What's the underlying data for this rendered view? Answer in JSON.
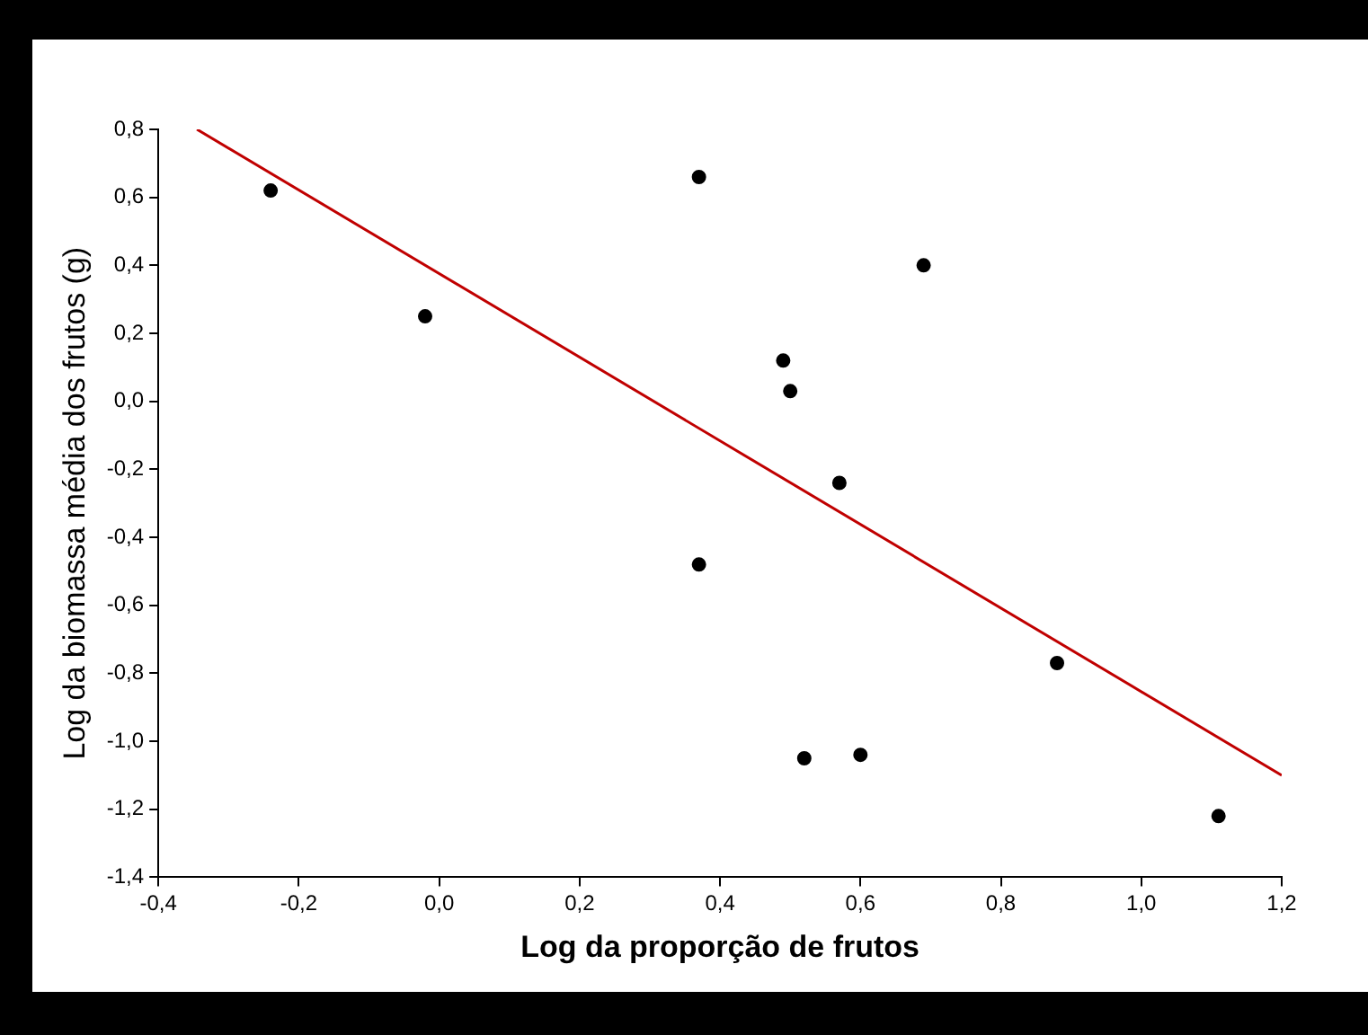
{
  "chart_data": {
    "type": "scatter",
    "xlabel": "Log da proporção de frutos",
    "ylabel": "Log da biomassa média dos frutos (g)",
    "series": [
      {
        "type": "scatter",
        "color": "#000000",
        "x": [
          -0.24,
          -0.02,
          0.37,
          0.37,
          0.49,
          0.5,
          0.52,
          0.57,
          0.6,
          0.69,
          0.88,
          1.11
        ],
        "values": [
          0.62,
          0.25,
          0.66,
          -0.48,
          0.12,
          0.03,
          -1.05,
          -0.24,
          -1.04,
          0.4,
          -0.77,
          -1.22
        ],
        "marker": "circle"
      },
      {
        "type": "line",
        "color": "#c00000",
        "x": [
          -0.345,
          1.2
        ],
        "values": [
          0.8,
          -1.1
        ],
        "marker": "none"
      }
    ],
    "xlim": [
      -0.4,
      1.2
    ],
    "ylim": [
      -1.4,
      0.8
    ],
    "xticks": [
      {
        "value": -0.4,
        "label": "-0,4"
      },
      {
        "value": -0.2,
        "label": "-0,2"
      },
      {
        "value": 0,
        "label": "0,0"
      },
      {
        "value": 0.2,
        "label": "0,2"
      },
      {
        "value": 0.4,
        "label": "0,4"
      },
      {
        "value": 0.6,
        "label": "0,6"
      },
      {
        "value": 0.8,
        "label": "0,8"
      },
      {
        "value": 1,
        "label": "1,0"
      },
      {
        "value": 1.2,
        "label": "1,2"
      }
    ],
    "yticks": [
      {
        "value": -1.4,
        "label": "-1,4"
      },
      {
        "value": -1.2,
        "label": "-1,2"
      },
      {
        "value": -1,
        "label": "-1,0"
      },
      {
        "value": -0.8,
        "label": "-0,8"
      },
      {
        "value": -0.6,
        "label": "-0,6"
      },
      {
        "value": -0.4,
        "label": "-0,4"
      },
      {
        "value": -0.2,
        "label": "-0,2"
      },
      {
        "value": 0,
        "label": "0,0"
      },
      {
        "value": 0.2,
        "label": "0,2"
      },
      {
        "value": 0.4,
        "label": "0,4"
      },
      {
        "value": 0.6,
        "label": "0,6"
      },
      {
        "value": 0.8,
        "label": "0,8"
      }
    ],
    "grid": false,
    "legend": false,
    "line_style": "solid"
  }
}
